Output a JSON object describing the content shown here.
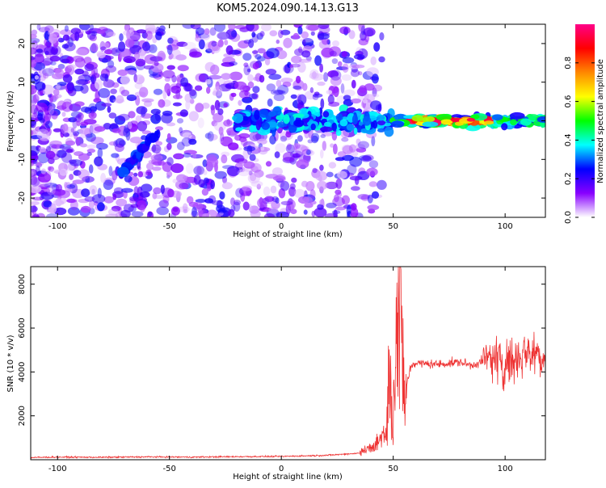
{
  "title": "KOM5.2024.090.14.13.G13",
  "chart_data": [
    {
      "type": "heatmap",
      "xlabel": "Height of straight line (km)",
      "ylabel": "Frequency (Hz)",
      "xlim": [
        -112,
        118
      ],
      "ylim": [
        -25,
        25
      ],
      "xticks": [
        -100,
        -50,
        0,
        50,
        100
      ],
      "yticks": [
        -20,
        -10,
        0,
        10,
        20
      ],
      "colorbar": {
        "label": "Normalized spectral amplitude",
        "range": [
          0,
          1
        ],
        "ticks": [
          0.0,
          0.2,
          0.4,
          0.6,
          0.8
        ],
        "tick_labels": [
          "0.0",
          "0.2",
          "0.4",
          "0.6",
          "0.8"
        ],
        "colors": [
          "#ffffff",
          "#8800ff",
          "#0000ff",
          "#00ffff",
          "#00ff00",
          "#ffff00",
          "#ff8800",
          "#ff0000",
          "#ff0088"
        ]
      },
      "features": [
        {
          "description": "scattered low-amplitude patches",
          "x_range": [
            -112,
            45
          ],
          "y_range": [
            -25,
            25
          ],
          "amplitude": [
            0.02,
            0.25
          ]
        },
        {
          "description": "diagonal purple streak",
          "x_range": [
            -72,
            -55
          ],
          "y_range": [
            -14,
            -3
          ],
          "amplitude": [
            0.2,
            0.3
          ]
        },
        {
          "description": "blue/purple band near 0 Hz",
          "x_range": [
            -20,
            50
          ],
          "y_range": [
            -4,
            4
          ],
          "amplitude": [
            0.2,
            0.4
          ]
        },
        {
          "description": "strong band near 0 Hz",
          "x_range": [
            50,
            118
          ],
          "y_range": [
            -2,
            2
          ],
          "amplitude": [
            0.3,
            1.0
          ]
        }
      ]
    },
    {
      "type": "line",
      "xlabel": "Height of straight line (km)",
      "ylabel": "SNR (10 * v/v)",
      "xlim": [
        -112,
        118
      ],
      "ylim": [
        0,
        8800
      ],
      "xticks": [
        -100,
        -50,
        0,
        50,
        100
      ],
      "yticks": [
        2000,
        4000,
        6000,
        8000
      ],
      "color": "#ee3333",
      "series": [
        {
          "x": [
            -112,
            -100,
            -80,
            -60,
            -40,
            -20,
            0,
            20,
            35,
            40,
            44,
            47,
            48,
            50,
            52,
            53,
            55,
            58,
            60,
            70,
            80,
            85,
            90,
            95,
            100,
            105,
            110,
            115,
            118
          ],
          "y": [
            100,
            120,
            110,
            130,
            120,
            140,
            150,
            200,
            300,
            600,
            900,
            1500,
            4200,
            2500,
            7000,
            8800,
            3000,
            4300,
            4400,
            4350,
            4450,
            4300,
            4500,
            4600,
            4500,
            4700,
            5000,
            4800,
            4600
          ]
        }
      ]
    }
  ]
}
